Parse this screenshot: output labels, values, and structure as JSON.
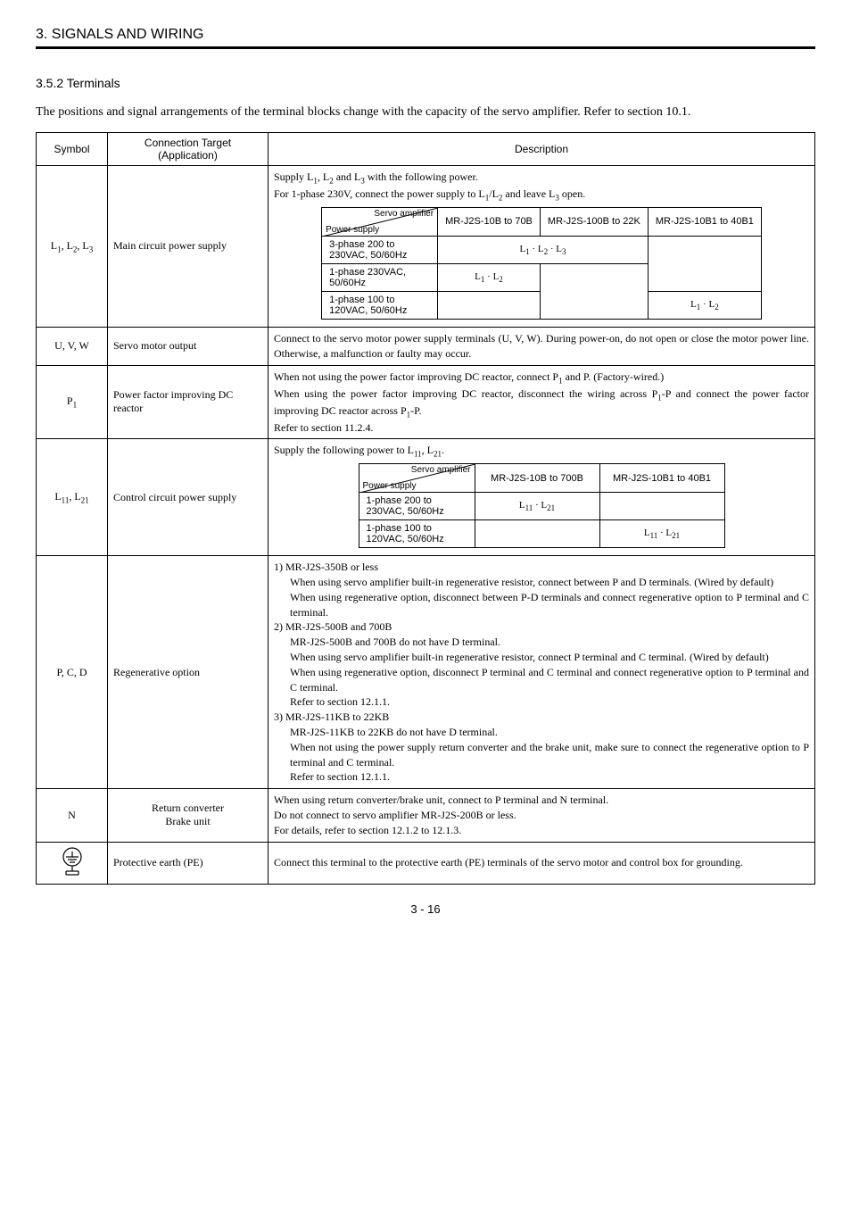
{
  "header": "3. SIGNALS AND WIRING",
  "subheading": "3.5.2 Terminals",
  "intro": "The positions and signal arrangements of the terminal blocks change with the capacity of the servo amplifier. Refer to section 10.1.",
  "cols": {
    "symbol": "Symbol",
    "target": "Connection Target\n(Application)",
    "desc": "Description"
  },
  "row_main": {
    "symbol_html": "L<sub>1</sub>, L<sub>2</sub>, L<sub>3</sub>",
    "target": "Main circuit power supply",
    "pre_html": "Supply L<sub>1</sub>, L<sub>2</sub> and L<sub>3</sub> with the following power.<br>For 1-phase 230V, connect the power supply to L<sub>1</sub>/L<sub>2</sub> and leave L<sub>3</sub> open.",
    "diag_tr": "Servo amplifier",
    "diag_bl": "Power supply",
    "h1": "MR-J2S-10B to 70B",
    "h2": "MR-J2S-100B to 22K",
    "h3": "MR-J2S-10B1 to 40B1",
    "r1_label": "3-phase 200 to 230VAC, 50/60Hz",
    "r1_v1_html": "L<sub>1</sub> · L<sub>2</sub> · L<sub>3</sub>",
    "r2_label": "1-phase 230VAC, 50/60Hz",
    "r2_v1_html": "L<sub>1</sub> · L<sub>2</sub>",
    "r3_label": "1-phase 100 to 120VAC, 50/60Hz",
    "r3_v3_html": "L<sub>1</sub> · L<sub>2</sub>"
  },
  "row_uvw": {
    "symbol": "U, V, W",
    "target": "Servo motor output",
    "desc": "Connect to the servo motor power supply terminals (U, V, W). During power-on, do not open or close the motor power line. Otherwise, a malfunction or faulty may occur."
  },
  "row_p1": {
    "symbol_html": "P<sub>1</sub>",
    "target": "Power factor improving DC reactor",
    "desc_html": "When not using the power factor improving DC reactor, connect P<sub>1</sub> and P. (Factory-wired.)<br>When using the power factor improving DC reactor, disconnect the wiring across P<sub>1</sub>-P and connect the power factor improving DC reactor across P<sub>1</sub>-P.<br>Refer to section 11.2.4."
  },
  "row_ctrl": {
    "symbol_html": "L<sub>11</sub>, L<sub>21</sub>",
    "target": "Control circuit power supply",
    "pre_html": "Supply the following power to L<sub>11</sub>, L<sub>21</sub>.",
    "diag_tr": "Servo amplifier",
    "diag_bl": "Power supply",
    "h1": "MR-J2S-10B to 700B",
    "h2": "MR-J2S-10B1 to 40B1",
    "r1_label": "1-phase 200 to 230VAC, 50/60Hz",
    "r1_v1_html": "L<sub>11</sub> · L<sub>21</sub>",
    "r2_label": "1-phase 100 to 120VAC, 50/60Hz",
    "r2_v2_html": "L<sub>11</sub> · L<sub>21</sub>"
  },
  "row_pcd": {
    "symbol": "P, C, D",
    "target": "Regenerative option",
    "l1": "1) MR-J2S-350B or less",
    "l1a": "When using servo amplifier built-in regenerative resistor, connect between P and D terminals. (Wired by default)",
    "l1b": "When using regenerative option, disconnect between P-D terminals and connect regenerative option to P terminal and C terminal.",
    "l2": "2) MR-J2S-500B and 700B",
    "l2a": "MR-J2S-500B and 700B do not have D terminal.",
    "l2b": "When using servo amplifier built-in regenerative resistor, connect P terminal and C terminal. (Wired by default)",
    "l2c": "When using regenerative option, disconnect P terminal and C terminal and connect regenerative option to P terminal and C terminal.",
    "l2d": "Refer to section 12.1.1.",
    "l3": "3) MR-J2S-11KB to 22KB",
    "l3a": "MR-J2S-11KB to 22KB do not have D terminal.",
    "l3b": "When not using the power supply return converter and the brake unit, make sure to connect the regenerative option to P terminal and C terminal.",
    "l3c": "Refer to section 12.1.1."
  },
  "row_n": {
    "symbol": "N",
    "target": "Return converter\nBrake unit",
    "desc": "When using return converter/brake unit, connect to P terminal and N terminal.\nDo not connect to servo amplifier MR-J2S-200B or less.\nFor details, refer to section 12.1.2 to 12.1.3."
  },
  "row_pe": {
    "target": "Protective earth (PE)",
    "desc": "Connect this terminal to the protective earth (PE) terminals of the servo motor and control box for grounding."
  },
  "page": "3 -  16"
}
